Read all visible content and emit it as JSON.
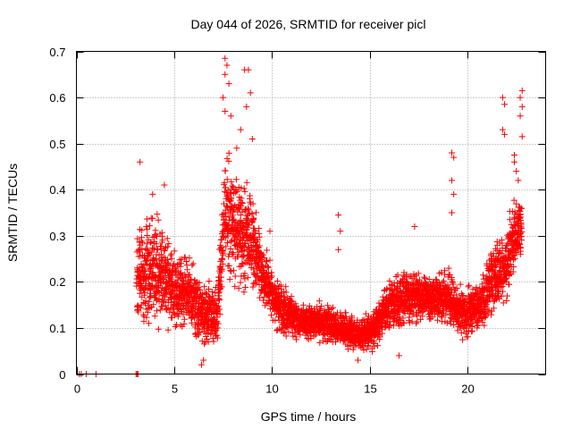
{
  "chart_data": {
    "type": "scatter",
    "title": "Day 044 of 2026, SRMTID for receiver picl",
    "xlabel": "GPS time / hours",
    "ylabel": "SRMTID / TECUs",
    "xlim": [
      0,
      24
    ],
    "ylim": [
      0,
      0.7
    ],
    "xticks": [
      0,
      5,
      10,
      15,
      20
    ],
    "xtick_labels": [
      "0",
      "5",
      "10",
      "15",
      "20"
    ],
    "yticks": [
      0,
      0.1,
      0.2,
      0.3,
      0.4,
      0.5,
      0.6,
      0.7
    ],
    "ytick_labels": [
      "0",
      "0.1",
      "0.2",
      "0.3",
      "0.4",
      "0.5",
      "0.6",
      "0.7"
    ],
    "grid": true,
    "marker": "+",
    "color": "#ff0000",
    "envelope": [
      {
        "x": 3.1,
        "low": 0.07,
        "high": 0.34
      },
      {
        "x": 3.6,
        "low": 0.08,
        "high": 0.36
      },
      {
        "x": 4.2,
        "low": 0.07,
        "high": 0.38
      },
      {
        "x": 5.0,
        "low": 0.08,
        "high": 0.3
      },
      {
        "x": 5.8,
        "low": 0.07,
        "high": 0.28
      },
      {
        "x": 6.5,
        "low": 0.04,
        "high": 0.22
      },
      {
        "x": 7.2,
        "low": 0.05,
        "high": 0.2
      },
      {
        "x": 7.6,
        "low": 0.2,
        "high": 0.5
      },
      {
        "x": 8.3,
        "low": 0.16,
        "high": 0.46
      },
      {
        "x": 8.9,
        "low": 0.15,
        "high": 0.44
      },
      {
        "x": 9.5,
        "low": 0.13,
        "high": 0.3
      },
      {
        "x": 10.5,
        "low": 0.07,
        "high": 0.2
      },
      {
        "x": 11.5,
        "low": 0.06,
        "high": 0.17
      },
      {
        "x": 12.5,
        "low": 0.06,
        "high": 0.16
      },
      {
        "x": 13.5,
        "low": 0.05,
        "high": 0.15
      },
      {
        "x": 14.5,
        "low": 0.04,
        "high": 0.12
      },
      {
        "x": 15.2,
        "low": 0.04,
        "high": 0.16
      },
      {
        "x": 16.0,
        "low": 0.08,
        "high": 0.22
      },
      {
        "x": 17.0,
        "low": 0.09,
        "high": 0.25
      },
      {
        "x": 18.0,
        "low": 0.1,
        "high": 0.23
      },
      {
        "x": 19.0,
        "low": 0.09,
        "high": 0.24
      },
      {
        "x": 19.8,
        "low": 0.06,
        "high": 0.2
      },
      {
        "x": 20.7,
        "low": 0.08,
        "high": 0.22
      },
      {
        "x": 21.3,
        "low": 0.1,
        "high": 0.3
      },
      {
        "x": 21.9,
        "low": 0.13,
        "high": 0.34
      },
      {
        "x": 22.5,
        "low": 0.2,
        "high": 0.4
      },
      {
        "x": 22.8,
        "low": 0.25,
        "high": 0.38
      }
    ],
    "notable_points": [
      {
        "x": 0.15,
        "y": 0.0
      },
      {
        "x": 0.25,
        "y": 0.0
      },
      {
        "x": 0.5,
        "y": 0.0
      },
      {
        "x": 1.0,
        "y": 0.0
      },
      {
        "x": 3.05,
        "y": 0.0
      },
      {
        "x": 3.1,
        "y": 0.0
      },
      {
        "x": 3.15,
        "y": 0.0
      },
      {
        "x": 3.25,
        "y": 0.46
      },
      {
        "x": 3.9,
        "y": 0.39
      },
      {
        "x": 4.5,
        "y": 0.41
      },
      {
        "x": 7.6,
        "y": 0.685
      },
      {
        "x": 7.7,
        "y": 0.67
      },
      {
        "x": 7.6,
        "y": 0.65
      },
      {
        "x": 7.8,
        "y": 0.63
      },
      {
        "x": 7.5,
        "y": 0.6
      },
      {
        "x": 7.6,
        "y": 0.57
      },
      {
        "x": 7.9,
        "y": 0.56
      },
      {
        "x": 8.6,
        "y": 0.66
      },
      {
        "x": 8.8,
        "y": 0.66
      },
      {
        "x": 8.9,
        "y": 0.61
      },
      {
        "x": 8.7,
        "y": 0.58
      },
      {
        "x": 8.4,
        "y": 0.53
      },
      {
        "x": 9.0,
        "y": 0.51
      },
      {
        "x": 8.2,
        "y": 0.49
      },
      {
        "x": 9.9,
        "y": 0.31
      },
      {
        "x": 13.4,
        "y": 0.345
      },
      {
        "x": 13.5,
        "y": 0.31
      },
      {
        "x": 13.4,
        "y": 0.27
      },
      {
        "x": 17.3,
        "y": 0.32
      },
      {
        "x": 19.2,
        "y": 0.48
      },
      {
        "x": 19.3,
        "y": 0.47
      },
      {
        "x": 19.2,
        "y": 0.42
      },
      {
        "x": 19.3,
        "y": 0.39
      },
      {
        "x": 19.2,
        "y": 0.35
      },
      {
        "x": 21.8,
        "y": 0.6
      },
      {
        "x": 21.9,
        "y": 0.585
      },
      {
        "x": 21.8,
        "y": 0.53
      },
      {
        "x": 21.9,
        "y": 0.52
      },
      {
        "x": 22.8,
        "y": 0.615
      },
      {
        "x": 22.7,
        "y": 0.6
      },
      {
        "x": 22.8,
        "y": 0.58
      },
      {
        "x": 22.7,
        "y": 0.56
      },
      {
        "x": 22.8,
        "y": 0.515
      },
      {
        "x": 22.4,
        "y": 0.475
      },
      {
        "x": 22.5,
        "y": 0.44
      },
      {
        "x": 22.6,
        "y": 0.42
      },
      {
        "x": 22.4,
        "y": 0.46
      },
      {
        "x": 16.5,
        "y": 0.04
      },
      {
        "x": 14.4,
        "y": 0.03
      },
      {
        "x": 6.4,
        "y": 0.02
      },
      {
        "x": 6.5,
        "y": 0.03
      }
    ],
    "random_seed": 44,
    "points_per_cluster": 9
  }
}
